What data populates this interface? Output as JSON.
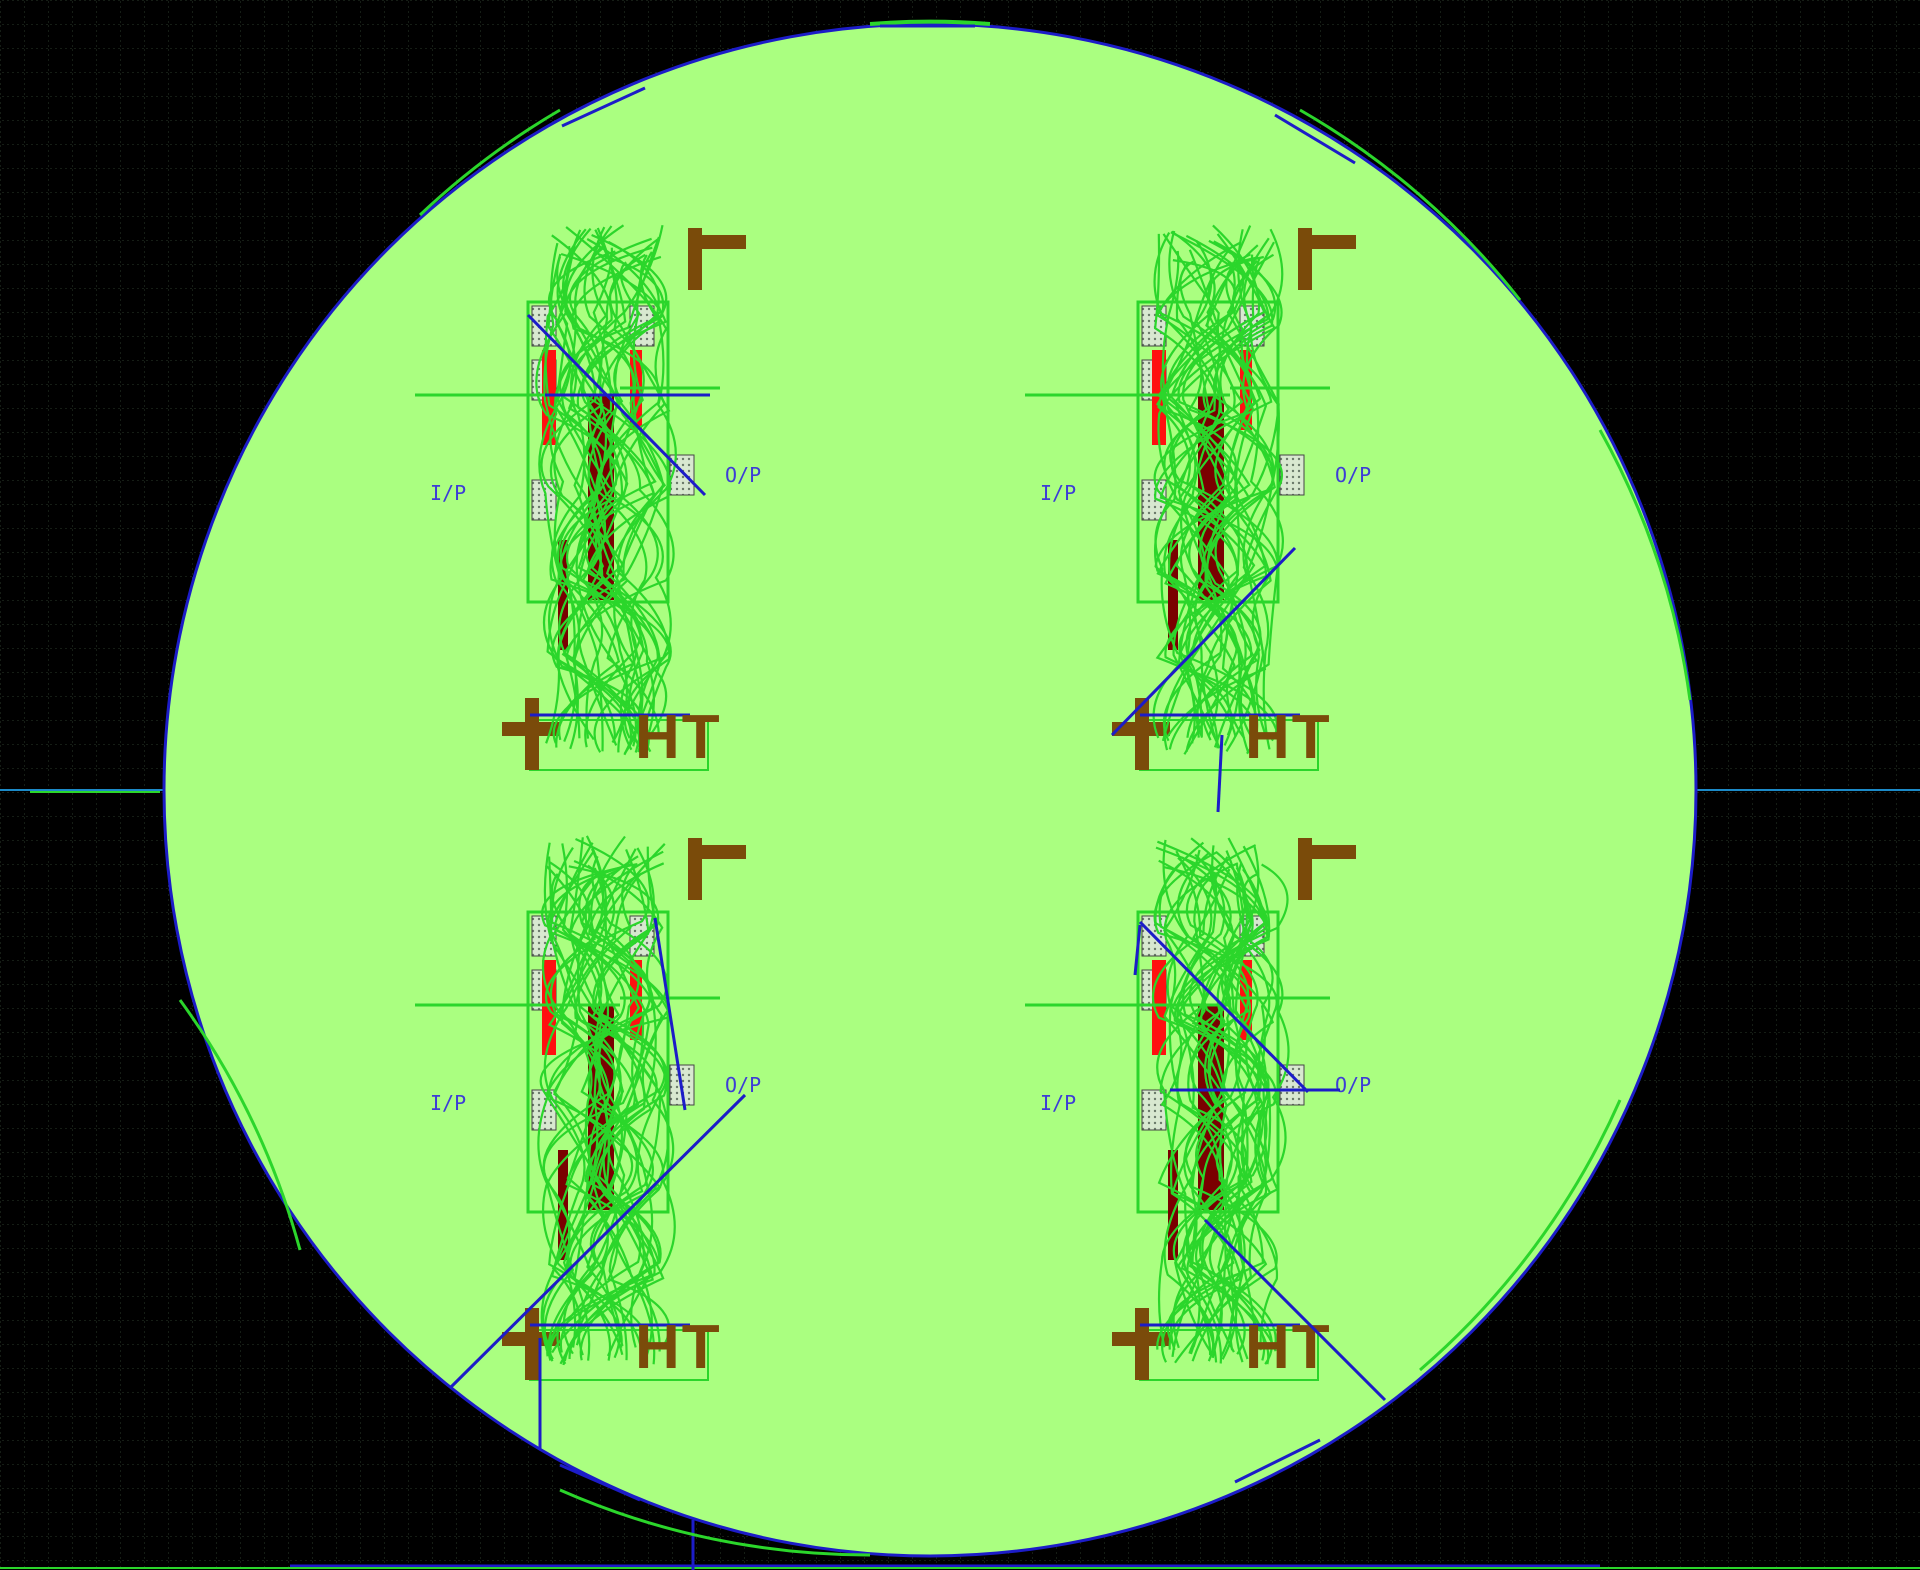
{
  "view": {
    "background_color": "#000000",
    "grid_color": "#2a3a2a",
    "board_fill_color": "#aaff80",
    "board_outline_color": "#1c1cc8",
    "ratsnest_color": "#2bd62b",
    "copper_color": "#7a4b0a",
    "pad_red_color": "#ff1010",
    "pad_dark_color": "#7a0000",
    "guide_line_color": "#1c1cc8"
  },
  "modules": [
    {
      "id": "top-left",
      "input_label": "I/P",
      "output_label": "O/P",
      "ht_label": "HT"
    },
    {
      "id": "top-right",
      "input_label": "I/P",
      "output_label": "O/P",
      "ht_label": "HT"
    },
    {
      "id": "bottom-left",
      "input_label": "I/P",
      "output_label": "O/P",
      "ht_label": "HT"
    },
    {
      "id": "bottom-right",
      "input_label": "I/P",
      "output_label": "O/P",
      "ht_label": "HT"
    }
  ]
}
